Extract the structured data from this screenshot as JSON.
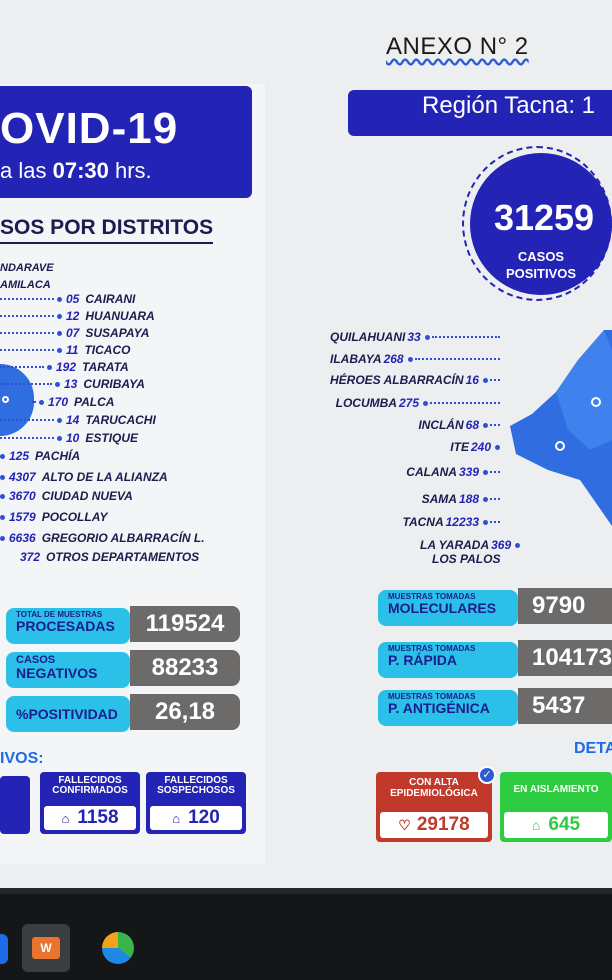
{
  "document": {
    "annex_label": "ANEXO N° 2"
  },
  "left": {
    "covid_title": "OVID-19",
    "time_prefix": "a las ",
    "time_value": "07:30",
    "time_suffix": " hrs.",
    "districts_heading": "SOS POR DISTRITOS",
    "plain_lines": [
      "NDARAVE",
      "AMILACA"
    ],
    "districts": [
      {
        "num": "05",
        "name": "CAIRANI"
      },
      {
        "num": "12",
        "name": "HUANUARA"
      },
      {
        "num": "07",
        "name": "SUSAPAYA"
      },
      {
        "num": "11",
        "name": "TICACO"
      },
      {
        "num": "192",
        "name": "TARATA"
      },
      {
        "num": "13",
        "name": "CURIBAYA"
      },
      {
        "num": "170",
        "name": "PALCA"
      },
      {
        "num": "14",
        "name": "TARUCACHI"
      },
      {
        "num": "10",
        "name": "ESTIQUE"
      },
      {
        "num": "125",
        "name": "PACHÍA"
      },
      {
        "num": "4307",
        "name": "ALTO DE LA ALIANZA"
      },
      {
        "num": "3670",
        "name": "CIUDAD NUEVA"
      },
      {
        "num": "1579",
        "name": "POCOLLAY"
      },
      {
        "num": "6636",
        "name": "GREGORIO ALBARRACÍN L."
      },
      {
        "num": "372",
        "name": "OTROS DEPARTAMENTOS"
      }
    ],
    "stats": [
      {
        "small": "TOTAL DE MUESTRAS",
        "label": "PROCESADAS",
        "value": "119524"
      },
      {
        "small": "CASOS",
        "label": "NEGATIVOS",
        "value": "88233"
      },
      {
        "small": "",
        "label": "%POSITIVIDAD",
        "value": "26,18"
      }
    ],
    "vivos_label": "IVOS:",
    "fallecidos": [
      {
        "head_1": "FALLECIDOS",
        "head_2": "CONFIRMADOS",
        "value": "1158"
      },
      {
        "head_1": "FALLECIDOS",
        "head_2": "SOSPECHOSOS",
        "value": "120"
      }
    ]
  },
  "right": {
    "region_title": "Región Tacna: 1",
    "total_cases": "31259",
    "cases_label_1": "CASOS",
    "cases_label_2": "POSITIVOS",
    "districts": [
      {
        "name": "QUILAHUANI",
        "num": "33"
      },
      {
        "name": "ILABAYA",
        "num": "268"
      },
      {
        "name": "HÉROES ALBARRACÍN",
        "num": "16"
      },
      {
        "name": "LOCUMBA",
        "num": "275"
      },
      {
        "name": "INCLÁN",
        "num": "68"
      },
      {
        "name": "ITE",
        "num": "240"
      },
      {
        "name": "CALANA",
        "num": "339"
      },
      {
        "name": "SAMA",
        "num": "188"
      },
      {
        "name": "TACNA",
        "num": "12233"
      },
      {
        "name": "LA YARADA",
        "num": "369"
      }
    ],
    "los_palos": "LOS PALOS",
    "tests": [
      {
        "small": "MUESTRAS TOMADAS",
        "label": "MOLECULARES",
        "value": "9790"
      },
      {
        "small": "MUESTRAS TOMADAS",
        "label": "P. RÁPIDA",
        "value": "104173"
      },
      {
        "small": "MUESTRAS TOMADAS",
        "label": "P. ANTIGÉNICA",
        "value": "5437"
      }
    ],
    "deta_label": "DETA",
    "alta": {
      "head_1": "CON ALTA",
      "head_2": "EPIDEMIOLÓGICA",
      "value": "29178"
    },
    "aislamiento": {
      "head_1": "EN AISLAMIENTO",
      "value": "645"
    }
  },
  "taskbar": {
    "apps": [
      {
        "icon": "office-icon",
        "glyph": "W"
      },
      {
        "icon": "edge-browser-icon"
      }
    ]
  },
  "colors": {
    "brand_blue": "#2323b5",
    "accent_cyan": "#2bc0e8",
    "value_gray": "#6d6a6a",
    "alta_red": "#c0392b",
    "aislamiento_green": "#2ecc40"
  }
}
